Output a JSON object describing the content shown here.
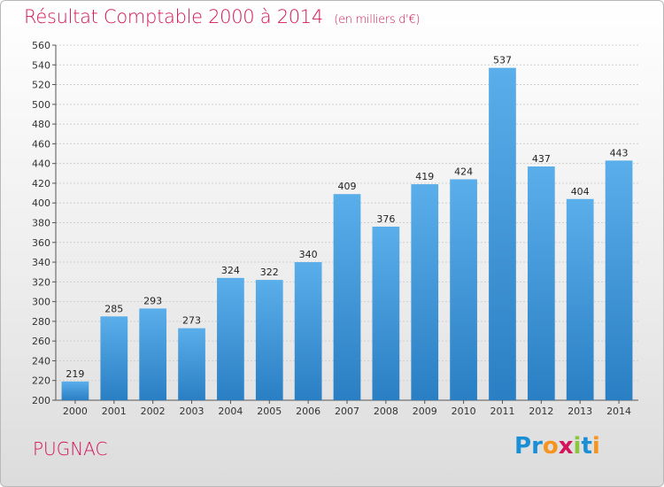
{
  "header": {
    "title": "Résultat Comptable 2000 à 2014",
    "unit": "(en milliers d'€)"
  },
  "footer": {
    "commune": "PUGNAC",
    "logo_letters": [
      {
        "char": "P",
        "color": "#1b8fd6"
      },
      {
        "char": "r",
        "color": "#1b8fd6"
      },
      {
        "char": "o",
        "color": "#f7941d"
      },
      {
        "char": "x",
        "color": "#d4145a"
      },
      {
        "char": "i",
        "color": "#8cc63f"
      },
      {
        "char": "t",
        "color": "#1b8fd6"
      },
      {
        "char": "i",
        "color": "#f7941d"
      }
    ]
  },
  "colors": {
    "bar_top": "#5aaeea",
    "bar_bottom": "#2a7fc4",
    "accent": "#d4145a",
    "grid": "#d0d0d0"
  },
  "chart_data": {
    "type": "bar",
    "title": "Résultat Comptable 2000 à 2014",
    "subtitle": "(en milliers d'€)",
    "xlabel": "",
    "ylabel": "",
    "categories": [
      "2000",
      "2001",
      "2002",
      "2003",
      "2004",
      "2005",
      "2006",
      "2007",
      "2008",
      "2009",
      "2010",
      "2011",
      "2012",
      "2013",
      "2014"
    ],
    "values": [
      219,
      285,
      293,
      273,
      324,
      322,
      340,
      409,
      376,
      419,
      424,
      537,
      437,
      404,
      443
    ],
    "ylim": [
      200,
      560
    ],
    "yticks": [
      200,
      220,
      240,
      260,
      280,
      300,
      320,
      340,
      360,
      380,
      400,
      420,
      440,
      460,
      480,
      500,
      520,
      540,
      560
    ],
    "grid": true,
    "legend": "none"
  }
}
